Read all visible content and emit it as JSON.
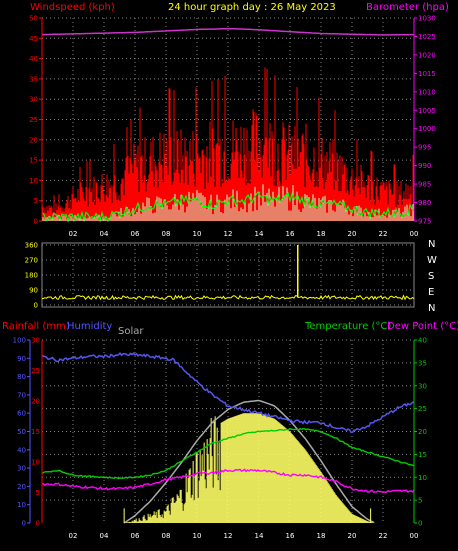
{
  "header": {
    "title": "24 hour graph day : 26 May 2023",
    "windspeed_label": "Windspeed (kph)",
    "barometer_label": "Barometer (hpa)"
  },
  "bottom_header": {
    "rainfall_label": "Rainfall (mm)",
    "humidity_label": "Humidity",
    "solar_label": "Solar",
    "temperature_label": "Temperature (°C)",
    "dewpoint_label": "Dew Point (°C)"
  },
  "compass": [
    "N",
    "W",
    "S",
    "E",
    "N"
  ],
  "colors": {
    "windspeed": "#ff0000",
    "gust_fill": "#ff0000",
    "avg_wind": "#00ff00",
    "wind_low": "#ccffcc",
    "barometer": "#cc33cc",
    "direction": "#ffff00",
    "humidity": "#5555ee",
    "temperature": "#00cc00",
    "dewpoint": "#ff00ff",
    "solar_fill": "#ffff66",
    "solar_max": "#aaaaaa",
    "axis_left_top": "#ff0000",
    "axis_right_top": "#ff00ff",
    "axis_left_bottom": "#5555ff",
    "axis_right_bottom": "#00cc00",
    "grid": "#888888"
  },
  "chart_data": [
    {
      "type": "line",
      "name": "wind-barometer",
      "x_ticks": [
        "02",
        "04",
        "06",
        "08",
        "10",
        "12",
        "14",
        "16",
        "18",
        "20",
        "22",
        "00"
      ],
      "y_left_ticks": [
        0,
        5,
        10,
        15,
        20,
        25,
        30,
        35,
        40,
        45,
        50
      ],
      "y_right_ticks": [
        975,
        980,
        985,
        990,
        995,
        1000,
        1005,
        1010,
        1015,
        1020,
        1025,
        1030
      ],
      "ylim_left": [
        0,
        50
      ],
      "ylim_right": [
        975,
        1030
      ],
      "grid": true,
      "series": [
        {
          "name": "Windspeed (kph)",
          "hours": [
            0,
            1,
            2,
            3,
            4,
            5,
            6,
            7,
            8,
            9,
            10,
            11,
            12,
            13,
            14,
            15,
            16,
            17,
            18,
            19,
            20,
            21,
            22,
            23,
            24
          ],
          "values": [
            5,
            4,
            8,
            10,
            12,
            13,
            18,
            20,
            22,
            21,
            22,
            23,
            24,
            25,
            26,
            24,
            22,
            22,
            20,
            18,
            14,
            12,
            10,
            9,
            11
          ]
        },
        {
          "name": "Average wind",
          "hours": [
            0,
            1,
            2,
            3,
            4,
            5,
            6,
            7,
            8,
            9,
            10,
            11,
            12,
            13,
            14,
            15,
            16,
            17,
            18,
            19,
            20,
            21,
            22,
            23,
            24
          ],
          "values": [
            1,
            1,
            1,
            1,
            1,
            2,
            3,
            4,
            4,
            5,
            5,
            4,
            5,
            5,
            6,
            5,
            6,
            5,
            4,
            4,
            3,
            2,
            2,
            2,
            3
          ]
        },
        {
          "name": "Barometer (hpa)",
          "hours": [
            0,
            2,
            4,
            6,
            8,
            10,
            12,
            13,
            14,
            16,
            18,
            20,
            22,
            24
          ],
          "values": [
            1025.5,
            1025.7,
            1025.9,
            1026.1,
            1026.5,
            1026.9,
            1027.1,
            1027.0,
            1026.8,
            1026.3,
            1025.8,
            1025.6,
            1025.4,
            1025.5
          ]
        }
      ]
    },
    {
      "type": "scatter",
      "name": "wind-direction",
      "y_ticks": [
        0,
        90,
        180,
        270,
        360
      ],
      "ylim": [
        0,
        360
      ],
      "series": [
        {
          "name": "Direction",
          "hours": [
            0,
            2,
            4,
            6,
            8,
            10,
            12,
            14,
            16,
            16.5,
            17,
            18,
            20,
            22,
            24
          ],
          "values": [
            45,
            40,
            48,
            42,
            45,
            40,
            44,
            46,
            42,
            360,
            45,
            42,
            44,
            46,
            44
          ]
        }
      ]
    },
    {
      "type": "line",
      "name": "temp-humidity-solar",
      "y_left_ticks": [
        0,
        10,
        20,
        30,
        40,
        50,
        60,
        70,
        80,
        90,
        100
      ],
      "y_rain_ticks": [
        0,
        5,
        10,
        15,
        20,
        25,
        30
      ],
      "y_right_ticks": [
        0,
        5,
        10,
        15,
        20,
        25,
        30,
        35,
        40
      ],
      "ylim_left": [
        0,
        100
      ],
      "ylim_right": [
        0,
        40
      ],
      "series": [
        {
          "name": "Humidity",
          "hours": [
            0,
            1,
            2,
            3,
            4,
            5,
            6,
            7,
            8,
            8.5,
            9,
            10,
            11,
            12,
            13,
            14,
            15,
            16,
            17,
            18,
            19,
            20,
            21,
            22,
            23,
            24
          ],
          "values": [
            91,
            89,
            90,
            91,
            91,
            92,
            92,
            91,
            90,
            89,
            85,
            77,
            70,
            64,
            62,
            60,
            58,
            56,
            55,
            55,
            52,
            50,
            53,
            58,
            63,
            66
          ]
        },
        {
          "name": "Temperature (°C)",
          "hours": [
            0,
            1,
            2,
            3,
            4,
            5,
            6,
            7,
            8,
            9,
            10,
            11,
            12,
            13,
            14,
            15,
            16,
            17,
            18,
            19,
            20,
            21,
            22,
            23,
            24
          ],
          "values": [
            11,
            11.5,
            10.5,
            10.2,
            10,
            9.8,
            10,
            10.5,
            11.5,
            13.5,
            15.5,
            17.5,
            18.5,
            19.5,
            20,
            20.2,
            20.5,
            20.5,
            20,
            18.5,
            16.5,
            15.5,
            14.5,
            13.5,
            12.5
          ]
        },
        {
          "name": "Dew Point (°C)",
          "hours": [
            0,
            1,
            2,
            3,
            4,
            5,
            6,
            7,
            8,
            9,
            10,
            11,
            12,
            13,
            14,
            15,
            16,
            17,
            18,
            19,
            20,
            21,
            22,
            23,
            24
          ],
          "values": [
            8.5,
            8.5,
            8,
            7.8,
            7.5,
            7.5,
            7.8,
            8.5,
            9.5,
            10,
            10.8,
            11,
            11.5,
            11.5,
            11.5,
            11,
            10.5,
            10.5,
            10,
            9,
            7.5,
            7,
            6.8,
            7,
            7
          ]
        },
        {
          "name": "Solar",
          "hours": [
            5.3,
            6,
            7,
            8,
            9,
            10,
            11,
            12,
            13,
            14,
            15,
            16,
            17,
            18,
            19,
            20,
            21,
            21.5
          ],
          "values": [
            0,
            2,
            5,
            8,
            20,
            40,
            52,
            57,
            60,
            60,
            57,
            50,
            40,
            28,
            15,
            5,
            1,
            0
          ]
        },
        {
          "name": "Solar max",
          "hours": [
            5.3,
            6,
            7,
            8,
            9,
            10,
            11,
            12,
            13,
            14,
            15,
            16,
            17,
            18,
            19,
            20,
            21,
            21.5
          ],
          "values": [
            0,
            4,
            12,
            22,
            33,
            45,
            55,
            62,
            66,
            67,
            64,
            56,
            46,
            34,
            21,
            9,
            2,
            0
          ]
        }
      ]
    }
  ]
}
